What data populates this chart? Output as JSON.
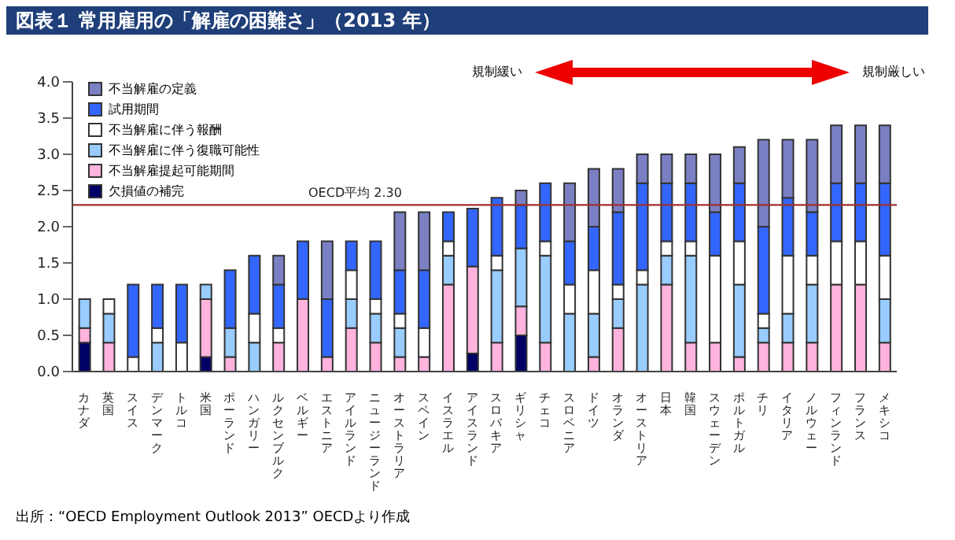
{
  "chart_data": {
    "type": "bar",
    "title": "図表１ 常用雇用の「解雇の困難さ」（2013 年）",
    "stacked": true,
    "categories": [
      "カナダ",
      "英国",
      "スイス",
      "デンマーク",
      "トルコ",
      "米国",
      "ポーランド",
      "ハンガリー",
      "ルクセンブルク",
      "ベルギー",
      "エストニア",
      "アイルランド",
      "ニュージーランド",
      "オーストラリア",
      "スペイン",
      "イスラエル",
      "アイスランド",
      "スロバキア",
      "ギリシャ",
      "チェコ",
      "スロベニア",
      "ドイツ",
      "オランダ",
      "オーストリア",
      "日本",
      "韓国",
      "スウェーデン",
      "ポルトガル",
      "チリ",
      "イタリア",
      "ノルウェー",
      "フィンランド",
      "フランス",
      "メキシコ"
    ],
    "series": [
      {
        "name": "欠損値の補完",
        "color": "#000066",
        "values": [
          0.4,
          0,
          0,
          0,
          0,
          0.2,
          0,
          0,
          0,
          0,
          0,
          0,
          0,
          0,
          0,
          0,
          0.25,
          0,
          0.5,
          0,
          0,
          0,
          0,
          0,
          0,
          0,
          0,
          0,
          0,
          0,
          0,
          0,
          0,
          0
        ]
      },
      {
        "name": "不当解雇提起可能期間",
        "color": "#ffb3dd",
        "values": [
          0.2,
          0.4,
          0,
          0,
          0,
          0.8,
          0.2,
          0,
          0.4,
          1.0,
          0.2,
          0.6,
          0.4,
          0.2,
          0.2,
          1.2,
          1.2,
          0.4,
          0.4,
          0.4,
          0,
          0.2,
          0.6,
          0,
          1.2,
          0.4,
          0.4,
          0.2,
          0.4,
          0.4,
          0.4,
          1.2,
          1.2,
          0.4
        ]
      },
      {
        "name": "不当解雇に伴う復職可能性",
        "color": "#99ccff",
        "values": [
          0.4,
          0.4,
          0,
          0.4,
          0,
          0.2,
          0.4,
          0.4,
          0,
          0,
          0,
          0.4,
          0.4,
          0.4,
          0,
          0.4,
          0,
          1.0,
          0.8,
          1.2,
          0.8,
          0.6,
          0.4,
          1.2,
          0.4,
          1.2,
          0,
          1.0,
          0.2,
          0.4,
          0.8,
          0,
          0,
          0.6
        ]
      },
      {
        "name": "不当解雇に伴う報酬",
        "color": "#ffffff",
        "values": [
          0,
          0.2,
          0.2,
          0.2,
          0.4,
          0,
          0,
          0.4,
          0.2,
          0,
          0,
          0.4,
          0.2,
          0.2,
          0.4,
          0.2,
          0,
          0.2,
          0,
          0.2,
          0.4,
          0.6,
          0.2,
          0.2,
          0.2,
          0.2,
          1.2,
          0.6,
          0.2,
          0.8,
          0.4,
          0.6,
          0.6,
          0.6
        ]
      },
      {
        "name": "試用期間",
        "color": "#3366ff",
        "values": [
          0,
          0,
          1.0,
          0.6,
          0.8,
          0,
          0.8,
          0.8,
          0.6,
          0.8,
          0.8,
          0.4,
          0.8,
          0.6,
          0.8,
          0.4,
          0.8,
          0.8,
          0.6,
          0.8,
          0.6,
          0.6,
          1.0,
          1.2,
          0.8,
          0.8,
          0.6,
          0.8,
          1.2,
          0.8,
          0.6,
          0.8,
          0.8,
          1.0
        ]
      },
      {
        "name": "不当解雇の定義",
        "color": "#7b80c4",
        "values": [
          0,
          0,
          0,
          0,
          0,
          0,
          0,
          0,
          0.4,
          0,
          0.8,
          0,
          0,
          0.8,
          0.8,
          0,
          0,
          0,
          0.2,
          0,
          0.8,
          0.8,
          0.6,
          0.4,
          0.4,
          0.4,
          0.8,
          0.5,
          1.2,
          0.8,
          1.0,
          0.8,
          0.8,
          0.8
        ]
      }
    ],
    "ylim": [
      0,
      4
    ],
    "yticks": [
      {
        "value": 0,
        "label": "0.0"
      },
      {
        "value": 0.5,
        "label": "0.5"
      },
      {
        "value": 1,
        "label": "1.0"
      },
      {
        "value": 1.5,
        "label": "1.5"
      },
      {
        "value": 2,
        "label": "2.0"
      },
      {
        "value": 2.5,
        "label": "2.5"
      },
      {
        "value": 3,
        "label": "3.0"
      },
      {
        "value": 3.5,
        "label": "3.5"
      },
      {
        "value": 4,
        "label": "4.0"
      }
    ],
    "ref_lines": [
      {
        "axis": "y",
        "value": 2.3,
        "label": "OECD平均 2.30",
        "color": "#a03030"
      }
    ],
    "annotations": [
      "規制緩い",
      "規制厳しい",
      "出所：“OECD Employment Outlook 2013” OECDより作成"
    ],
    "grid": false,
    "legend": "top left"
  }
}
